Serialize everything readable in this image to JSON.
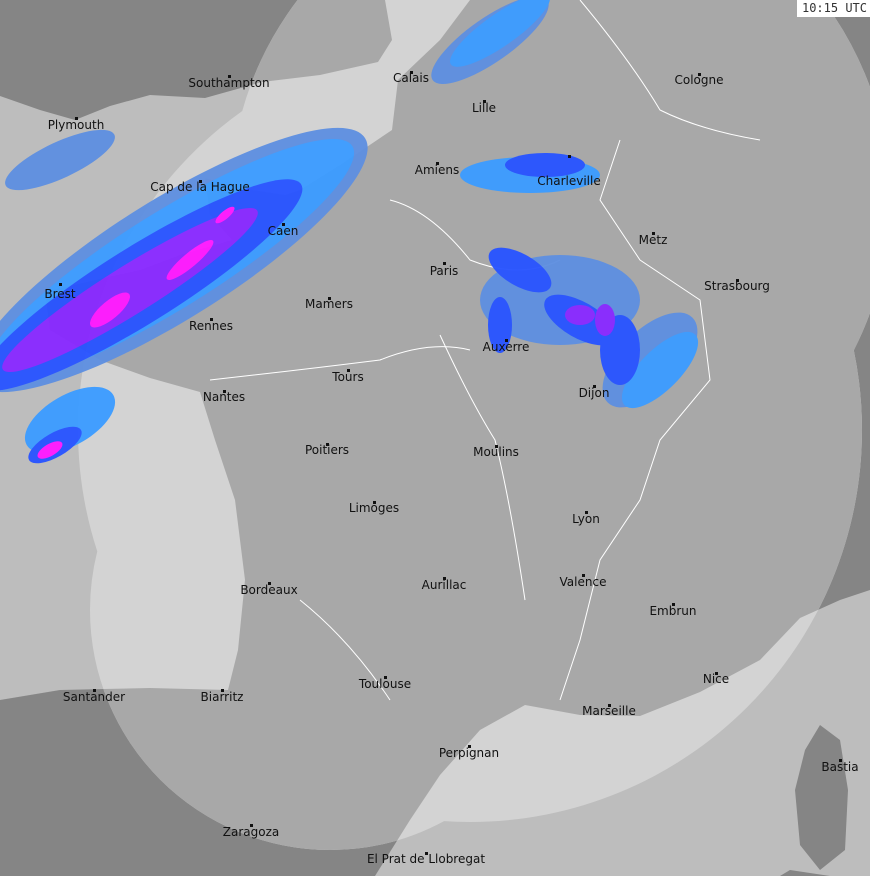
{
  "timestamp": "10:15 UTC",
  "colors": {
    "sea_outside": "#bdbdbd",
    "land_outside": "#858585",
    "sea_inside": "#d3d3d3",
    "land_inside": "#a8a8a8",
    "rain_light": "#3d9cff",
    "rain_muted": "#5f90e0",
    "rain_moderate": "#2a55ff",
    "rain_heavy": "#8a2bff",
    "rain_intense": "#ff1aff"
  },
  "cities": [
    {
      "name": "Southampton"
    },
    {
      "name": "Calais"
    },
    {
      "name": "Cologne"
    },
    {
      "name": "Plymouth"
    },
    {
      "name": "Lille"
    },
    {
      "name": "Amiens"
    },
    {
      "name": "Charleville"
    },
    {
      "name": "Cap de la Hague"
    },
    {
      "name": "Caen"
    },
    {
      "name": "Metz"
    },
    {
      "name": "Paris"
    },
    {
      "name": "Strasbourg"
    },
    {
      "name": "Brest"
    },
    {
      "name": "Mamers"
    },
    {
      "name": "Rennes"
    },
    {
      "name": "Auxerre"
    },
    {
      "name": "Tours"
    },
    {
      "name": "Dijon"
    },
    {
      "name": "Nantes"
    },
    {
      "name": "Poitiers"
    },
    {
      "name": "Moulins"
    },
    {
      "name": "Limoges"
    },
    {
      "name": "Lyon"
    },
    {
      "name": "Bordeaux"
    },
    {
      "name": "Aurillac"
    },
    {
      "name": "Valence"
    },
    {
      "name": "Embrun"
    },
    {
      "name": "Santander"
    },
    {
      "name": "Biarritz"
    },
    {
      "name": "Toulouse"
    },
    {
      "name": "Nice"
    },
    {
      "name": "Marseille"
    },
    {
      "name": "Perpignan"
    },
    {
      "name": "Bastia"
    },
    {
      "name": "Zaragoza"
    },
    {
      "name": "El Prat de Llobregat"
    }
  ]
}
